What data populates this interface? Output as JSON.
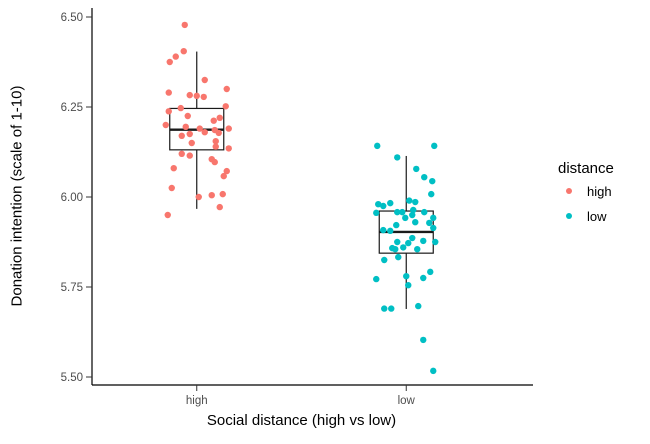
{
  "chart_data": {
    "type": "boxplot",
    "subtype": "boxplot-with-jittered-points",
    "xlabel": "Social distance (high vs low)",
    "ylabel": "Donation intention (scale of 1-10)",
    "categories": [
      "high",
      "low"
    ],
    "ylim": [
      5.5,
      6.5
    ],
    "yticks": [
      {
        "value": 6.5,
        "label": "6.50"
      },
      {
        "value": 6.25,
        "label": "6.25"
      },
      {
        "value": 6.0,
        "label": "6.00"
      },
      {
        "value": 5.75,
        "label": "5.75"
      },
      {
        "value": 5.5,
        "label": "5.50"
      }
    ],
    "grid": "off",
    "legend": {
      "title": "distance",
      "position": "right",
      "entries": [
        {
          "label": "high",
          "color": "#F8766D"
        },
        {
          "label": "low",
          "color": "#00BFC4"
        }
      ]
    },
    "series": [
      {
        "name": "high",
        "color": "#F8766D",
        "box": {
          "whisker_low": 5.967,
          "q1": 6.131,
          "median": 6.187,
          "q3": 6.246,
          "whisker_high": 6.404
        },
        "points": [
          [
            -12,
            6.478
          ],
          [
            -13,
            6.405
          ],
          [
            -21,
            6.39
          ],
          [
            -27,
            6.375
          ],
          [
            8,
            6.325
          ],
          [
            30,
            6.3
          ],
          [
            -28,
            6.29
          ],
          [
            -7,
            6.283
          ],
          [
            0,
            6.281
          ],
          [
            7,
            6.278
          ],
          [
            29,
            6.252
          ],
          [
            -16,
            6.247
          ],
          [
            -28,
            6.238
          ],
          [
            -9,
            6.225
          ],
          [
            23,
            6.22
          ],
          [
            17,
            6.212
          ],
          [
            -31,
            6.2
          ],
          [
            -11,
            6.195
          ],
          [
            3,
            6.19
          ],
          [
            18,
            6.186
          ],
          [
            32,
            6.19
          ],
          [
            22,
            6.178
          ],
          [
            8,
            6.18
          ],
          [
            -7,
            6.175
          ],
          [
            -15,
            6.17
          ],
          [
            19,
            6.155
          ],
          [
            -5,
            6.15
          ],
          [
            19,
            6.14
          ],
          [
            32,
            6.135
          ],
          [
            -15,
            6.12
          ],
          [
            -7,
            6.115
          ],
          [
            15,
            6.105
          ],
          [
            18,
            6.097
          ],
          [
            -23,
            6.08
          ],
          [
            30,
            6.072
          ],
          [
            27,
            6.058
          ],
          [
            -25,
            6.025
          ],
          [
            15,
            6.005
          ],
          [
            26,
            6.008
          ],
          [
            2,
            6.0
          ],
          [
            23,
            5.972
          ],
          [
            -29,
            5.95
          ]
        ]
      },
      {
        "name": "low",
        "color": "#00BFC4",
        "box": {
          "whisker_low": 5.689,
          "q1": 5.844,
          "median": 5.903,
          "q3": 5.961,
          "whisker_high": 6.114
        },
        "points": [
          [
            -29,
            6.142
          ],
          [
            28,
            6.142
          ],
          [
            -9,
            6.11
          ],
          [
            10,
            6.078
          ],
          [
            18,
            6.055
          ],
          [
            26,
            6.044
          ],
          [
            25,
            6.008
          ],
          [
            3,
            5.99
          ],
          [
            9,
            5.986
          ],
          [
            -16,
            5.983
          ],
          [
            -28,
            5.98
          ],
          [
            -23,
            5.975
          ],
          [
            -30,
            5.956
          ],
          [
            -9,
            5.958
          ],
          [
            -4,
            5.958
          ],
          [
            7,
            5.964
          ],
          [
            18,
            5.958
          ],
          [
            27,
            5.942
          ],
          [
            6,
            5.95
          ],
          [
            -10,
            5.922
          ],
          [
            -1,
            5.942
          ],
          [
            9,
            5.93
          ],
          [
            23,
            5.928
          ],
          [
            -23,
            5.908
          ],
          [
            -16,
            5.906
          ],
          [
            27,
            5.914
          ],
          [
            -9,
            5.875
          ],
          [
            2,
            5.872
          ],
          [
            6,
            5.886
          ],
          [
            17,
            5.878
          ],
          [
            29,
            5.875
          ],
          [
            -14,
            5.858
          ],
          [
            -11,
            5.855
          ],
          [
            -3,
            5.86
          ],
          [
            11,
            5.855
          ],
          [
            -22,
            5.825
          ],
          [
            -8,
            5.833
          ],
          [
            -30,
            5.772
          ],
          [
            0,
            5.78
          ],
          [
            17,
            5.775
          ],
          [
            24,
            5.792
          ],
          [
            2,
            5.755
          ],
          [
            -22,
            5.69
          ],
          [
            -15,
            5.69
          ],
          [
            12,
            5.697
          ],
          [
            17,
            5.603
          ],
          [
            27,
            5.517
          ]
        ]
      }
    ],
    "style": {
      "tick_label_color": "#4d4d4d",
      "axis_line_color": "#000000",
      "box_line_color": "#1a1a1a",
      "box_fill": "#ffffff"
    }
  }
}
